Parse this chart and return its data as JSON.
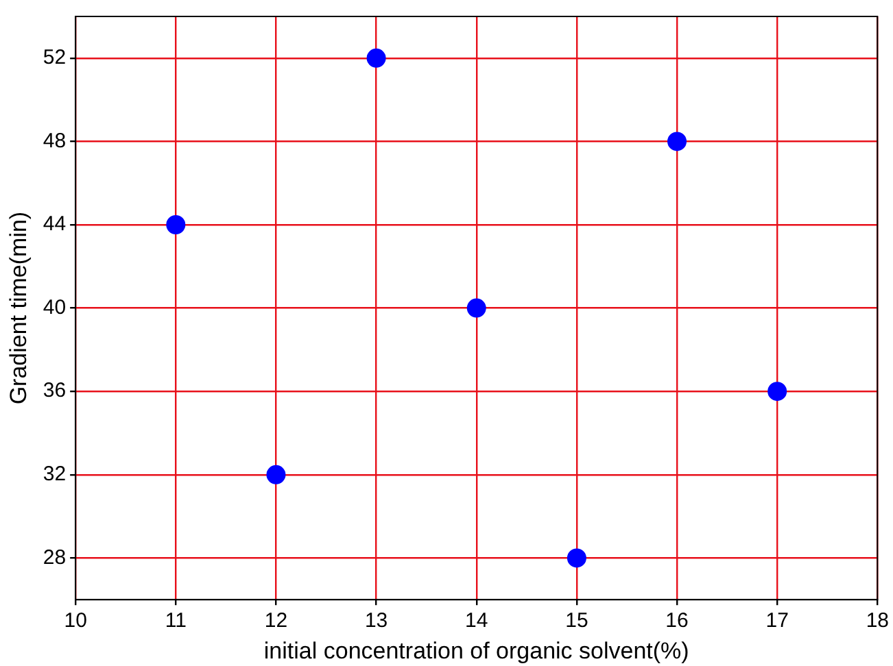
{
  "chart_data": {
    "type": "scatter",
    "xlabel": "initial concentration of organic solvent(%)",
    "ylabel": "Gradient time(min)",
    "x": [
      11,
      12,
      13,
      14,
      15,
      16,
      17
    ],
    "series": [
      {
        "color": "#0000ff",
        "values": [
          44,
          32,
          52,
          40,
          28,
          48,
          36
        ]
      }
    ],
    "xlim": [
      10,
      18
    ],
    "xticks": [
      10,
      11,
      12,
      13,
      14,
      15,
      16,
      17,
      18
    ],
    "ylim": [
      26,
      54
    ],
    "yticks": [
      28,
      32,
      36,
      40,
      44,
      48,
      52
    ],
    "grid": true,
    "marker": "circle",
    "legend": false
  }
}
